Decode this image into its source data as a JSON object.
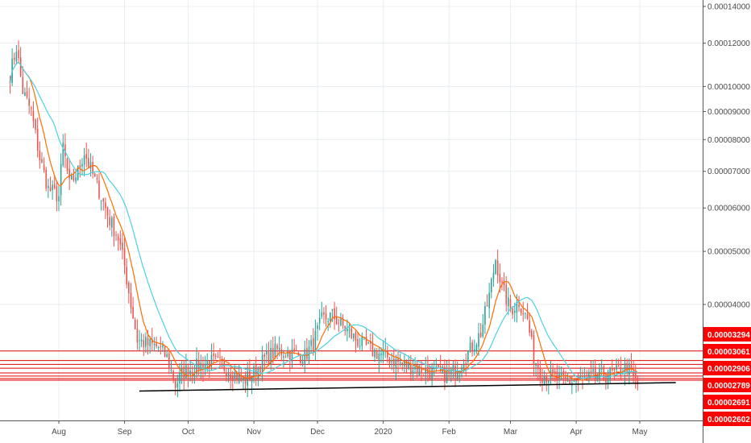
{
  "chart_data": {
    "type": "candlestick",
    "y_scale": "log",
    "grid": true,
    "ylim": [
      2.5e-05,
      0.000142
    ],
    "x_ticks": [
      {
        "label": "Aug",
        "date": "2019-08-01"
      },
      {
        "label": "Sep",
        "date": "2019-09-01"
      },
      {
        "label": "Oct",
        "date": "2019-10-01"
      },
      {
        "label": "Nov",
        "date": "2019-11-01"
      },
      {
        "label": "Dec",
        "date": "2019-12-01"
      },
      {
        "label": "2020",
        "date": "2020-01-01"
      },
      {
        "label": "Feb",
        "date": "2020-02-01"
      },
      {
        "label": "Mar",
        "date": "2020-03-01"
      },
      {
        "label": "Apr",
        "date": "2020-04-01"
      },
      {
        "label": "May",
        "date": "2020-05-01"
      }
    ],
    "y_ticks": [
      {
        "label": "0.00014000",
        "value": 0.00014
      },
      {
        "label": "0.00012000",
        "value": 0.00012
      },
      {
        "label": "0.00010000",
        "value": 0.0001
      },
      {
        "label": "0.00009000",
        "value": 9e-05
      },
      {
        "label": "0.00008000",
        "value": 8e-05
      },
      {
        "label": "0.00007000",
        "value": 7e-05
      },
      {
        "label": "0.00006000",
        "value": 6e-05
      },
      {
        "label": "0.00005000",
        "value": 5e-05
      },
      {
        "label": "0.00004000",
        "value": 4e-05
      }
    ],
    "price_badges": [
      {
        "label": "0.00003294",
        "value": 3.294e-05
      },
      {
        "label": "0.00003061",
        "value": 3.061e-05
      },
      {
        "label": "0.00002906",
        "value": 2.906e-05
      },
      {
        "label": "0.00002789",
        "value": 2.789e-05
      },
      {
        "label": "0.00002691",
        "value": 2.691e-05
      },
      {
        "label": "0.00002602",
        "value": 2.602e-05
      }
    ],
    "horizontal_levels": [
      3.29e-05,
      3.16e-05,
      3.11e-05,
      3.06e-05,
      3e-05,
      2.96e-05,
      2.93e-05,
      2.91e-05
    ],
    "trendline": {
      "start": {
        "date": "2019-09-08",
        "value": 2.78e-05
      },
      "end": {
        "date": "2020-05-18",
        "value": 2.88e-05
      }
    },
    "price_path": [
      [
        "2019-07-09",
        0.000105
      ],
      [
        "2019-07-12",
        0.000118
      ],
      [
        "2019-07-15",
        9.8e-05
      ],
      [
        "2019-07-19",
        9e-05
      ],
      [
        "2019-07-23",
        7.4e-05
      ],
      [
        "2019-07-27",
        6.5e-05
      ],
      [
        "2019-08-01",
        6.3e-05
      ],
      [
        "2019-08-03",
        7.8e-05
      ],
      [
        "2019-08-06",
        6.6e-05
      ],
      [
        "2019-08-10",
        7e-05
      ],
      [
        "2019-08-13",
        7.6e-05
      ],
      [
        "2019-08-17",
        6.9e-05
      ],
      [
        "2019-08-21",
        6.3e-05
      ],
      [
        "2019-08-25",
        5.7e-05
      ],
      [
        "2019-08-29",
        5.3e-05
      ],
      [
        "2019-09-01",
        4.7e-05
      ],
      [
        "2019-09-04",
        4e-05
      ],
      [
        "2019-09-07",
        3.45e-05
      ],
      [
        "2019-09-12",
        3.38e-05
      ],
      [
        "2019-09-17",
        3.34e-05
      ],
      [
        "2019-09-21",
        3.2e-05
      ],
      [
        "2019-09-25",
        2.85e-05
      ],
      [
        "2019-09-29",
        3.02e-05
      ],
      [
        "2019-10-05",
        3.08e-05
      ],
      [
        "2019-10-11",
        3.15e-05
      ],
      [
        "2019-10-17",
        3.1e-05
      ],
      [
        "2019-10-22",
        3e-05
      ],
      [
        "2019-10-27",
        2.9e-05
      ],
      [
        "2019-11-01",
        3e-05
      ],
      [
        "2019-11-06",
        3.18e-05
      ],
      [
        "2019-11-12",
        3.3e-05
      ],
      [
        "2019-11-19",
        3.25e-05
      ],
      [
        "2019-11-25",
        3.22e-05
      ],
      [
        "2019-11-29",
        3.4e-05
      ],
      [
        "2019-12-03",
        3.75e-05
      ],
      [
        "2019-12-08",
        3.82e-05
      ],
      [
        "2019-12-13",
        3.65e-05
      ],
      [
        "2019-12-19",
        3.45e-05
      ],
      [
        "2019-12-26",
        3.3e-05
      ],
      [
        "2020-01-02",
        3.22e-05
      ],
      [
        "2020-01-09",
        3.12e-05
      ],
      [
        "2020-01-17",
        3.06e-05
      ],
      [
        "2020-01-24",
        3e-05
      ],
      [
        "2020-02-01",
        2.97e-05
      ],
      [
        "2020-02-06",
        3.12e-05
      ],
      [
        "2020-02-11",
        3.3e-05
      ],
      [
        "2020-02-16",
        3.55e-05
      ],
      [
        "2020-02-20",
        4.15e-05
      ],
      [
        "2020-02-23",
        4.85e-05
      ],
      [
        "2020-02-26",
        4.3e-05
      ],
      [
        "2020-03-01",
        3.9e-05
      ],
      [
        "2020-03-05",
        4.05e-05
      ],
      [
        "2020-03-09",
        3.75e-05
      ],
      [
        "2020-03-12",
        3.2e-05
      ],
      [
        "2020-03-16",
        2.98e-05
      ],
      [
        "2020-03-21",
        2.94e-05
      ],
      [
        "2020-03-27",
        2.89e-05
      ],
      [
        "2020-04-02",
        2.9e-05
      ],
      [
        "2020-04-08",
        2.94e-05
      ],
      [
        "2020-04-14",
        2.96e-05
      ],
      [
        "2020-04-20",
        3e-05
      ],
      [
        "2020-04-25",
        3.08e-05
      ],
      [
        "2020-04-30",
        2.85e-05
      ]
    ],
    "colors": {
      "up": "#26a69a",
      "down": "#ef5350",
      "ma_fast": "#ff6d00",
      "ma_slow": "#4dd0e1",
      "levels": "#e00000",
      "badge": "#ff0000",
      "trendline": "#000000",
      "grid": "#e8edf2",
      "axis": "#555555"
    }
  }
}
